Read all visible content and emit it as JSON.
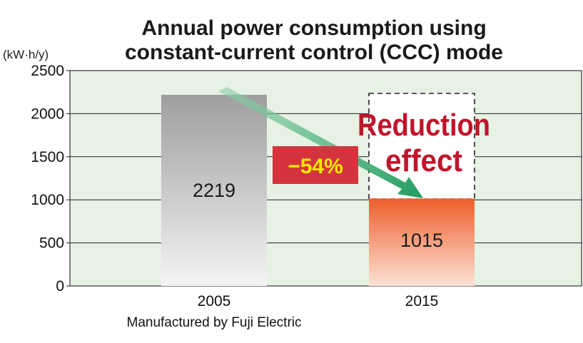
{
  "chart_data": {
    "type": "bar",
    "title": [
      "Annual power consumption using",
      "constant-current control (CCC) mode"
    ],
    "unit_label": "(kW·h/y)",
    "categories": [
      "2005",
      "2015"
    ],
    "category_sublabels": [
      "Manufactured by Fuji Electric",
      ""
    ],
    "values": [
      2219,
      1015
    ],
    "data_labels": [
      "2219",
      "1015"
    ],
    "ylim": [
      0,
      2500
    ],
    "yticks": [
      0,
      500,
      1000,
      1500,
      2000,
      2500
    ],
    "grid": true,
    "annotations": {
      "reduction_text": [
        "Reduction",
        "effect"
      ],
      "percent_text": "−54%"
    }
  },
  "colors": {
    "plot_background": "#e6f2e4",
    "bar_2005": "#a8a8a8",
    "bar_2015": "#ef6a3a",
    "arrow": "#2aa066",
    "badge": "#d4343e",
    "badge_text": "#f5e800",
    "reduction_text": "#c0142b"
  }
}
